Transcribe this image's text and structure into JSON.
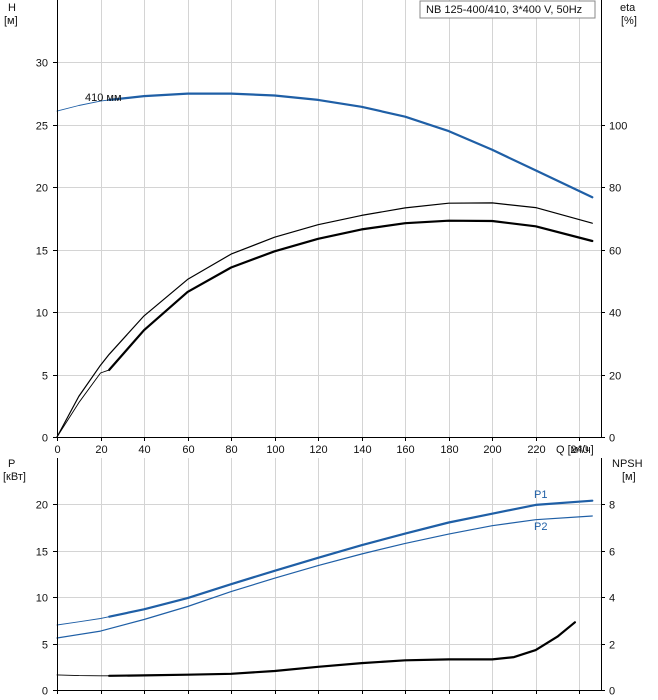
{
  "chart_data": [
    {
      "type": "line",
      "panel": "head-efficiency",
      "legend_box": "NB 125-400/410, 3*400 V, 50Hz",
      "ylabel_left": "H",
      "yunit_left": "[м]",
      "ylabel_right": "eta",
      "yunit_right": "[%]",
      "xlabel": "Q [м³/ч]",
      "xlim": [
        0,
        250
      ],
      "xticks": [
        0,
        20,
        40,
        60,
        80,
        100,
        120,
        140,
        160,
        180,
        200,
        220,
        240
      ],
      "ylim_left": [
        0,
        35
      ],
      "yticks_left": [
        0,
        5,
        10,
        15,
        20,
        25,
        30
      ],
      "ylim_right": [
        0,
        140
      ],
      "yticks_right": [
        0,
        20,
        40,
        60,
        80,
        100
      ],
      "grid": true,
      "series": [
        {
          "name": "410 мм",
          "axis": "left",
          "color": "#1f5fa6",
          "x_thin": [
            0,
            10,
            20,
            24
          ],
          "y_thin": [
            26.1,
            26.55,
            26.9,
            27.0
          ],
          "x": [
            24,
            40,
            60,
            80,
            100,
            120,
            140,
            160,
            180,
            200,
            220,
            246
          ],
          "y": [
            27.0,
            27.3,
            27.5,
            27.5,
            27.35,
            27.0,
            26.45,
            25.65,
            24.5,
            23.0,
            21.35,
            19.2
          ]
        },
        {
          "axis": "right",
          "color": "#000000",
          "stroke": 1.2,
          "x": [
            0,
            10,
            20,
            24,
            40,
            60,
            80,
            100,
            120,
            140,
            160,
            180,
            200,
            220,
            246
          ],
          "y": [
            0,
            13,
            23,
            26.5,
            38.8,
            50.5,
            58.6,
            64.0,
            68.0,
            71.0,
            73.4,
            74.9,
            75.0,
            73.5,
            68.5
          ]
        },
        {
          "axis": "right",
          "color": "#000000",
          "stroke": 2.2,
          "x_thin": [
            0,
            10,
            20,
            24
          ],
          "y_thin": [
            0,
            11,
            20.5,
            21.5
          ],
          "x": [
            24,
            40,
            60,
            80,
            100,
            120,
            140,
            160,
            180,
            200,
            220,
            246
          ],
          "y": [
            21.5,
            34.2,
            46.5,
            54.3,
            59.5,
            63.5,
            66.5,
            68.5,
            69.3,
            69.2,
            67.5,
            62.8
          ]
        }
      ]
    },
    {
      "type": "line",
      "panel": "power-npsh",
      "ylabel_left": "P",
      "yunit_left": "[кВт]",
      "ylabel_right": "NPSH",
      "yunit_right": "[м]",
      "xlim": [
        0,
        250
      ],
      "ylim_left": [
        0,
        25
      ],
      "yticks_left": [
        0,
        5,
        10,
        15,
        20
      ],
      "ylim_right": [
        0,
        10
      ],
      "yticks_right": [
        0,
        2,
        4,
        6,
        8
      ],
      "grid": true,
      "series": [
        {
          "name": "P1",
          "axis": "left",
          "color": "#1f5fa6",
          "stroke": 2.2,
          "x_thin": [
            0,
            10,
            20,
            24
          ],
          "y_thin": [
            7.0,
            7.35,
            7.7,
            7.9
          ],
          "x": [
            24,
            40,
            60,
            80,
            100,
            120,
            140,
            160,
            180,
            200,
            220,
            246
          ],
          "y": [
            7.9,
            8.7,
            9.9,
            11.4,
            12.85,
            14.25,
            15.6,
            16.85,
            18.05,
            19.0,
            19.95,
            20.4
          ]
        },
        {
          "name": "P2",
          "axis": "left",
          "color": "#1f5fa6",
          "stroke": 1.2,
          "x": [
            0,
            20,
            40,
            60,
            80,
            100,
            120,
            140,
            160,
            180,
            200,
            220,
            246
          ],
          "y": [
            5.6,
            6.35,
            7.6,
            9.0,
            10.6,
            12.05,
            13.4,
            14.65,
            15.8,
            16.8,
            17.7,
            18.35,
            18.75
          ]
        },
        {
          "axis": "right",
          "color": "#000000",
          "stroke": 2.2,
          "x_thin": [
            0,
            10,
            20,
            24
          ],
          "y_thin": [
            0.65,
            0.62,
            0.61,
            0.61
          ],
          "x": [
            24,
            40,
            60,
            80,
            100,
            120,
            140,
            160,
            180,
            200,
            210,
            220,
            230,
            238
          ],
          "y": [
            0.61,
            0.63,
            0.66,
            0.7,
            0.82,
            1.0,
            1.16,
            1.28,
            1.32,
            1.32,
            1.42,
            1.72,
            2.3,
            2.92
          ]
        }
      ]
    }
  ]
}
